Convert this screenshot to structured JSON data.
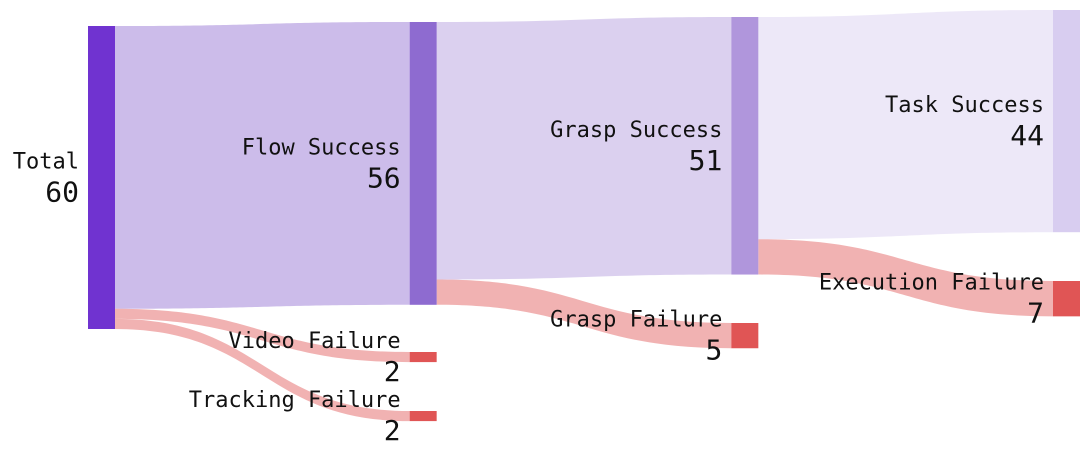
{
  "chart_data": {
    "type": "sankey",
    "nodes": [
      {
        "name": "Total",
        "value": 60,
        "color": "#7033d0"
      },
      {
        "name": "Flow Success",
        "value": 56,
        "color": "#8e6bd0",
        "source": 0
      },
      {
        "name": "Video Failure",
        "value": 2,
        "color": "#e05555",
        "source": 0
      },
      {
        "name": "Tracking Failure",
        "value": 2,
        "color": "#e05555",
        "source": 0
      },
      {
        "name": "Grasp Success",
        "value": 51,
        "color": "#b096dc",
        "source": 1
      },
      {
        "name": "Grasp Failure",
        "value": 5,
        "color": "#e05555",
        "source": 1
      },
      {
        "name": "Task Success",
        "value": 44,
        "color": "#d8cdf0",
        "source": 4
      },
      {
        "name": "Execution Failure",
        "value": 7,
        "color": "#e05555",
        "source": 4
      }
    ]
  }
}
